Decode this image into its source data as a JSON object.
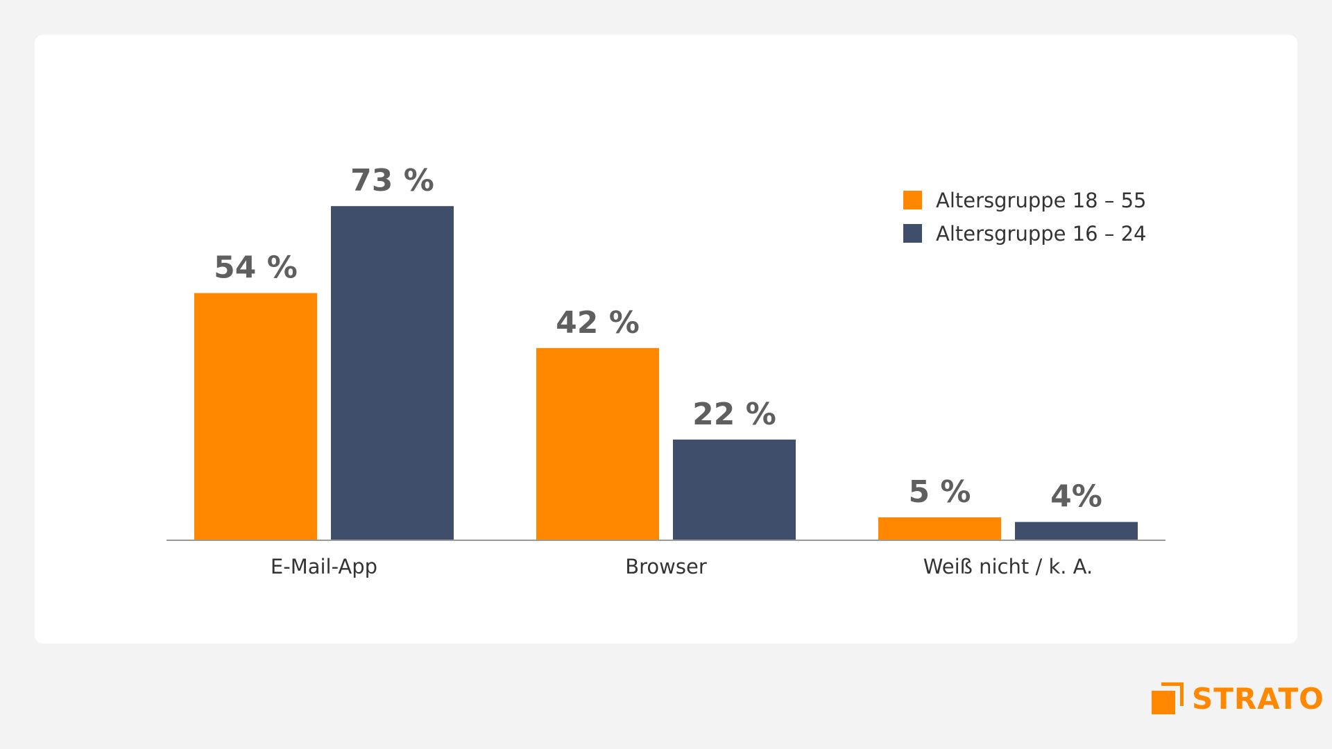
{
  "chart_data": {
    "type": "bar",
    "categories": [
      "E-Mail-App",
      "Browser",
      "Weiß nicht / k. A."
    ],
    "series": [
      {
        "name": "Altersgruppe 18 – 55",
        "values": [
          54,
          42,
          5
        ],
        "labels": [
          "54 %",
          "42 %",
          "5 %"
        ],
        "color": "#ff8800"
      },
      {
        "name": "Altersgruppe 16 – 24",
        "values": [
          73,
          22,
          4
        ],
        "labels": [
          "73 %",
          "22 %",
          "4%"
        ],
        "color": "#3f4e6b"
      }
    ],
    "ylim": [
      0,
      100
    ],
    "grid": false,
    "legend_position": "top-right",
    "title": "",
    "xlabel": "",
    "ylabel": ""
  },
  "brand": {
    "name": "STRATO",
    "color": "#ff8800"
  },
  "colors": {
    "background": "#f3f3f3",
    "card": "#ffffff",
    "axis": "#999999",
    "value_label": "#5f5f5f",
    "text": "#333333"
  }
}
